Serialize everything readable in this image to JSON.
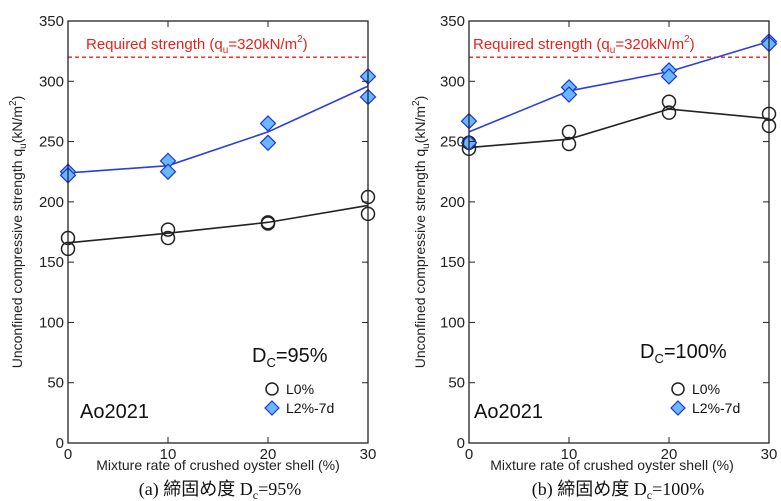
{
  "chart_data": [
    {
      "type": "line",
      "x": [
        0,
        10,
        20,
        30
      ],
      "xlabel": "Mixture rate of crushed oyster shell (%)",
      "ylabel": "Unconfined compressive strength q",
      "ylabel_sub": "u",
      "ylabel_unit": "(kN/m",
      "ylabel_sup": "2",
      "ylabel_end": ")",
      "xlim": [
        0,
        30
      ],
      "ylim": [
        0,
        350
      ],
      "xticks": [
        0,
        10,
        20,
        30
      ],
      "yticks": [
        0,
        50,
        100,
        150,
        200,
        250,
        300,
        350
      ],
      "reference": {
        "value": 320,
        "label_pre": "Required strength (q",
        "label_sub": "u",
        "label_post": "=320kN/m",
        "label_sup": "2",
        "label_end": ")"
      },
      "series": [
        {
          "name": "L0%",
          "marker": "circle",
          "color": "#222222",
          "line": [
            166,
            174,
            183,
            197
          ],
          "points": [
            [
              0,
              170
            ],
            [
              0,
              161
            ],
            [
              10,
              177
            ],
            [
              10,
              170
            ],
            [
              20,
              183
            ],
            [
              20,
              182
            ],
            [
              30,
              204
            ],
            [
              30,
              190
            ]
          ]
        },
        {
          "name": "L2%-7d",
          "marker": "diamond",
          "color": "#2a3fd8",
          "line": [
            224,
            230,
            258,
            296
          ],
          "points": [
            [
              0,
              225
            ],
            [
              0,
              222
            ],
            [
              10,
              234
            ],
            [
              10,
              225
            ],
            [
              20,
              265
            ],
            [
              20,
              249
            ],
            [
              30,
              304
            ],
            [
              30,
              287
            ]
          ]
        }
      ],
      "dc": {
        "pre": "D",
        "sub": "C",
        "post": "=95%"
      },
      "tag": "Ao2021",
      "caption": {
        "pre": "(a)  締固め度 D",
        "sub": "c",
        "post": "=95%"
      }
    },
    {
      "type": "line",
      "x": [
        0,
        10,
        20,
        30
      ],
      "xlabel": "Mixture rate of crushed oyster shell (%)",
      "ylabel": "Unconfined compressive strength q",
      "ylabel_sub": "u",
      "ylabel_unit": "(kN/m",
      "ylabel_sup": "2",
      "ylabel_end": ")",
      "xlim": [
        0,
        30
      ],
      "ylim": [
        0,
        350
      ],
      "xticks": [
        0,
        10,
        20,
        30
      ],
      "yticks": [
        0,
        50,
        100,
        150,
        200,
        250,
        300,
        350
      ],
      "reference": {
        "value": 320,
        "label_pre": "Required strength (q",
        "label_sub": "u",
        "label_post": "=320kN/m",
        "label_sup": "2",
        "label_end": ")"
      },
      "series": [
        {
          "name": "L0%",
          "marker": "circle",
          "color": "#222222",
          "line": [
            245,
            252,
            277,
            269
          ],
          "points": [
            [
              0,
              249
            ],
            [
              0,
              244
            ],
            [
              10,
              258
            ],
            [
              10,
              248
            ],
            [
              20,
              283
            ],
            [
              20,
              274
            ],
            [
              30,
              273
            ],
            [
              30,
              263
            ]
          ]
        },
        {
          "name": "L2%-7d",
          "marker": "diamond",
          "color": "#2a3fd8",
          "line": [
            258,
            292,
            308,
            333
          ],
          "points": [
            [
              0,
              267
            ],
            [
              0,
              249
            ],
            [
              10,
              295
            ],
            [
              10,
              289
            ],
            [
              20,
              309
            ],
            [
              20,
              304
            ],
            [
              30,
              333
            ],
            [
              30,
              331
            ]
          ]
        }
      ],
      "dc": {
        "pre": "D",
        "sub": "C",
        "post": "=100%"
      },
      "tag": "Ao2021",
      "caption": {
        "pre": "(b)  締固め度 D",
        "sub": "c",
        "post": "=100%"
      }
    }
  ]
}
